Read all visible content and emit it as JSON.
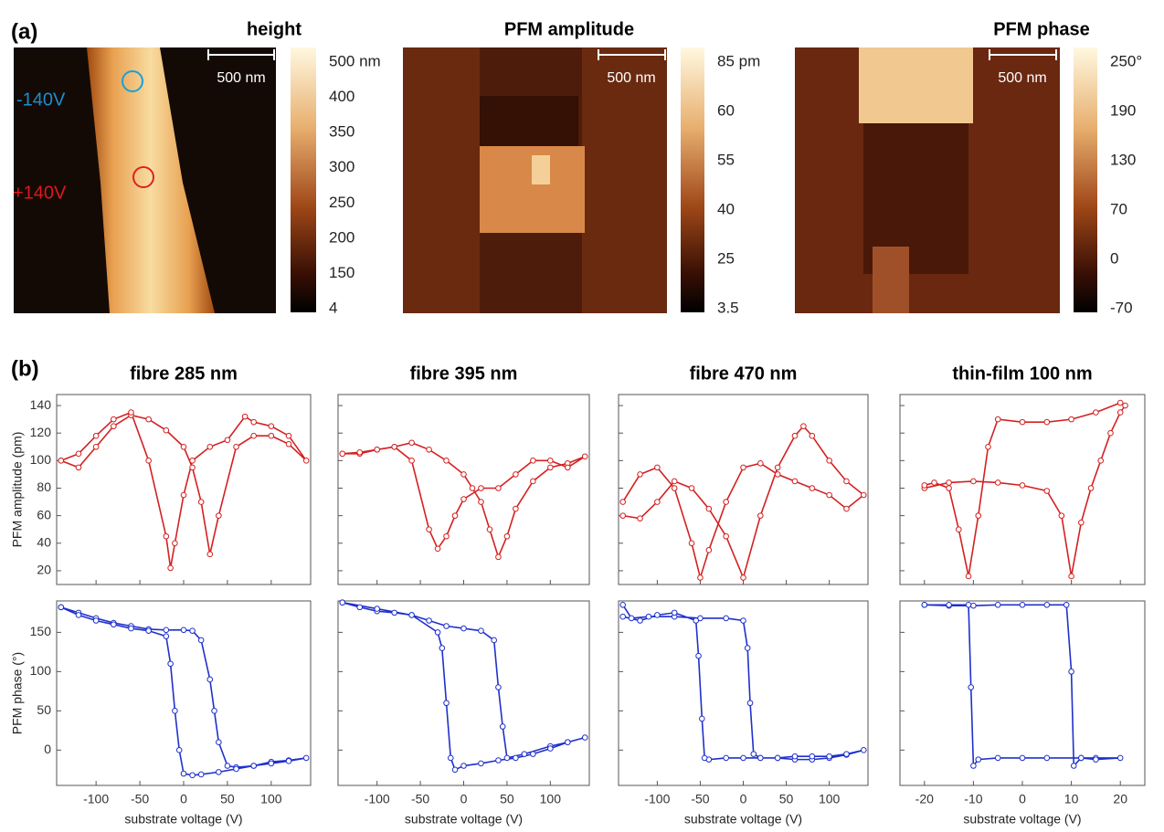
{
  "panel_a": {
    "label": "(a)",
    "images": [
      {
        "title": "height",
        "scale_bar": "500 nm",
        "colorbar": [
          "500 nm",
          "400",
          "350",
          "300",
          "250",
          "200",
          "150",
          "4"
        ],
        "annotations": [
          "-140V",
          "+140V"
        ]
      },
      {
        "title": "PFM amplitude",
        "scale_bar": "500 nm",
        "colorbar": [
          "85 pm",
          "60",
          "55",
          "40",
          "25",
          "3.5"
        ]
      },
      {
        "title": "PFM phase",
        "scale_bar": "500 nm",
        "colorbar": [
          "250°",
          "190",
          "130",
          "70",
          "0",
          "-70"
        ]
      }
    ]
  },
  "panel_b": {
    "label": "(b)"
  },
  "chart_data": [
    {
      "type": "line",
      "title": "fibre 285 nm",
      "ylabel": "PFM amplitude (pm)",
      "xlim": [
        -145,
        145
      ],
      "xticks": [
        -100,
        -50,
        0,
        50,
        100
      ],
      "xtick_labels": false,
      "ylim": [
        10,
        148
      ],
      "yticks": [
        20,
        40,
        60,
        80,
        100,
        120,
        140
      ],
      "ytick_labels": true,
      "x": [
        -140,
        -120,
        -100,
        -80,
        -60,
        -40,
        -20,
        0,
        10,
        20,
        30,
        40,
        60,
        80,
        100,
        120,
        140,
        120,
        100,
        80,
        70,
        50,
        30,
        10,
        0,
        -10,
        -15,
        -20,
        -40,
        -60,
        -80,
        -100,
        -120,
        -140
      ],
      "series": [
        {
          "color": "#d42020",
          "values": [
            100,
            95,
            110,
            125,
            133,
            130,
            122,
            110,
            95,
            70,
            32,
            60,
            110,
            118,
            118,
            112,
            100,
            118,
            125,
            128,
            132,
            115,
            110,
            100,
            75,
            40,
            22,
            45,
            100,
            135,
            130,
            118,
            105,
            100
          ]
        }
      ]
    },
    {
      "type": "line",
      "title": "fibre 395 nm",
      "xlim": [
        -145,
        145
      ],
      "xticks": [
        -100,
        -50,
        0,
        50,
        100
      ],
      "xtick_labels": false,
      "ylim": [
        10,
        148
      ],
      "yticks": [
        20,
        40,
        60,
        80,
        100,
        120,
        140
      ],
      "ytick_labels": false,
      "x": [
        -140,
        -120,
        -100,
        -80,
        -60,
        -40,
        -20,
        0,
        10,
        20,
        30,
        40,
        50,
        60,
        80,
        100,
        120,
        140,
        120,
        100,
        80,
        60,
        40,
        20,
        0,
        -10,
        -20,
        -30,
        -40,
        -60,
        -80,
        -100,
        -120,
        -140
      ],
      "series": [
        {
          "color": "#d42020",
          "values": [
            105,
            105,
            108,
            110,
            113,
            108,
            100,
            90,
            80,
            70,
            50,
            30,
            45,
            65,
            85,
            95,
            98,
            103,
            95,
            100,
            100,
            90,
            80,
            80,
            72,
            60,
            45,
            36,
            50,
            100,
            110,
            108,
            106,
            105
          ]
        }
      ]
    },
    {
      "type": "line",
      "title": "fibre 470 nm",
      "xlim": [
        -145,
        145
      ],
      "xticks": [
        -100,
        -50,
        0,
        50,
        100
      ],
      "xtick_labels": false,
      "ylim": [
        10,
        148
      ],
      "yticks": [
        20,
        40,
        60,
        80,
        100,
        120,
        140
      ],
      "ytick_labels": false,
      "x": [
        -140,
        -120,
        -100,
        -80,
        -60,
        -40,
        -20,
        0,
        20,
        40,
        60,
        70,
        80,
        100,
        120,
        140,
        120,
        100,
        80,
        60,
        40,
        20,
        0,
        -20,
        -40,
        -50,
        -60,
        -80,
        -100,
        -120,
        -140
      ],
      "series": [
        {
          "color": "#d42020",
          "values": [
            60,
            58,
            70,
            85,
            80,
            65,
            45,
            15,
            60,
            95,
            118,
            125,
            118,
            100,
            85,
            75,
            65,
            75,
            80,
            85,
            90,
            98,
            95,
            70,
            35,
            15,
            40,
            80,
            95,
            90,
            70
          ]
        }
      ]
    },
    {
      "type": "line",
      "title": "thin-film 100 nm",
      "xlim": [
        -25,
        25
      ],
      "xticks": [
        -20,
        -10,
        0,
        10,
        20
      ],
      "xtick_labels": false,
      "ylim": [
        10,
        148
      ],
      "yticks": [
        20,
        40,
        60,
        80,
        100,
        120,
        140
      ],
      "ytick_labels": false,
      "x": [
        -20,
        -15,
        -10,
        -5,
        0,
        5,
        8,
        10,
        12,
        14,
        16,
        18,
        20,
        21,
        20,
        15,
        10,
        5,
        0,
        -5,
        -7,
        -9,
        -11,
        -13,
        -15,
        -18,
        -20
      ],
      "series": [
        {
          "color": "#d42020",
          "values": [
            80,
            84,
            85,
            84,
            82,
            78,
            60,
            16,
            55,
            80,
            100,
            120,
            135,
            140,
            142,
            135,
            130,
            128,
            128,
            130,
            110,
            60,
            16,
            50,
            80,
            84,
            82
          ]
        }
      ]
    },
    {
      "type": "line",
      "ylabel": "PFM phase (°)",
      "xlabel": "substrate voltage (V)",
      "xlim": [
        -145,
        145
      ],
      "xticks": [
        -100,
        -50,
        0,
        50,
        100
      ],
      "xtick_labels": true,
      "ylim": [
        -45,
        190
      ],
      "yticks": [
        0,
        50,
        100,
        150
      ],
      "ytick_labels": true,
      "x": [
        -140,
        -120,
        -100,
        -80,
        -60,
        -40,
        -20,
        0,
        10,
        20,
        30,
        35,
        40,
        50,
        60,
        80,
        100,
        120,
        140,
        120,
        100,
        80,
        60,
        40,
        20,
        10,
        0,
        -5,
        -10,
        -15,
        -20,
        -40,
        -60,
        -80,
        -100,
        -120,
        -140
      ],
      "series": [
        {
          "color": "#1f30cc",
          "values": [
            182,
            175,
            168,
            162,
            158,
            154,
            153,
            153,
            152,
            140,
            90,
            50,
            10,
            -20,
            -22,
            -20,
            -15,
            -13,
            -10,
            -14,
            -17,
            -20,
            -24,
            -28,
            -31,
            -32,
            -30,
            0,
            50,
            110,
            145,
            152,
            155,
            160,
            165,
            172,
            182
          ]
        }
      ]
    },
    {
      "type": "line",
      "xlabel": "substrate voltage (V)",
      "xlim": [
        -145,
        145
      ],
      "xticks": [
        -100,
        -50,
        0,
        50,
        100
      ],
      "xtick_labels": true,
      "ylim": [
        -45,
        190
      ],
      "yticks": [
        0,
        50,
        100,
        150
      ],
      "ytick_labels": false,
      "x": [
        -140,
        -120,
        -100,
        -80,
        -60,
        -40,
        -20,
        0,
        20,
        35,
        40,
        45,
        50,
        70,
        100,
        120,
        140,
        120,
        100,
        80,
        60,
        40,
        20,
        0,
        -10,
        -15,
        -20,
        -25,
        -30,
        -60,
        -100,
        -140
      ],
      "series": [
        {
          "color": "#1f30cc",
          "values": [
            188,
            182,
            177,
            175,
            172,
            165,
            158,
            155,
            152,
            140,
            80,
            30,
            -10,
            -5,
            5,
            10,
            16,
            10,
            2,
            -5,
            -10,
            -13,
            -17,
            -20,
            -25,
            -10,
            60,
            130,
            150,
            172,
            180,
            188
          ]
        }
      ]
    },
    {
      "type": "line",
      "xlabel": "substrate voltage (V)",
      "xlim": [
        -145,
        145
      ],
      "xticks": [
        -100,
        -50,
        0,
        50,
        100
      ],
      "xtick_labels": true,
      "ylim": [
        -45,
        190
      ],
      "yticks": [
        0,
        50,
        100,
        150
      ],
      "ytick_labels": false,
      "x": [
        -140,
        -130,
        -110,
        -80,
        -50,
        -20,
        0,
        5,
        8,
        12,
        20,
        40,
        60,
        80,
        100,
        120,
        140,
        120,
        100,
        80,
        60,
        40,
        20,
        0,
        -20,
        -40,
        -45,
        -48,
        -52,
        -55,
        -80,
        -100,
        -120,
        -140
      ],
      "series": [
        {
          "color": "#1f30cc",
          "values": [
            185,
            168,
            170,
            170,
            168,
            168,
            165,
            130,
            60,
            -5,
            -10,
            -10,
            -12,
            -12,
            -10,
            -6,
            0,
            -5,
            -8,
            -8,
            -8,
            -10,
            -10,
            -10,
            -10,
            -12,
            -10,
            40,
            120,
            165,
            175,
            172,
            165,
            170
          ]
        }
      ]
    },
    {
      "type": "line",
      "xlabel": "substrate voltage (V)",
      "xlim": [
        -25,
        25
      ],
      "xticks": [
        -20,
        -10,
        0,
        10,
        20
      ],
      "xtick_labels": true,
      "ylim": [
        -45,
        190
      ],
      "yticks": [
        0,
        50,
        100,
        150
      ],
      "ytick_labels": false,
      "x": [
        -20,
        -15,
        -10,
        -5,
        0,
        5,
        9,
        10,
        10.5,
        12,
        15,
        20,
        15,
        12,
        5,
        0,
        -5,
        -9,
        -10,
        -10.5,
        -11,
        -15,
        -20
      ],
      "series": [
        {
          "color": "#1f30cc",
          "values": [
            185,
            184,
            184,
            185,
            185,
            185,
            185,
            100,
            -20,
            -10,
            -10,
            -10,
            -12,
            -10,
            -10,
            -10,
            -10,
            -12,
            -20,
            80,
            185,
            185,
            185
          ]
        }
      ]
    }
  ]
}
